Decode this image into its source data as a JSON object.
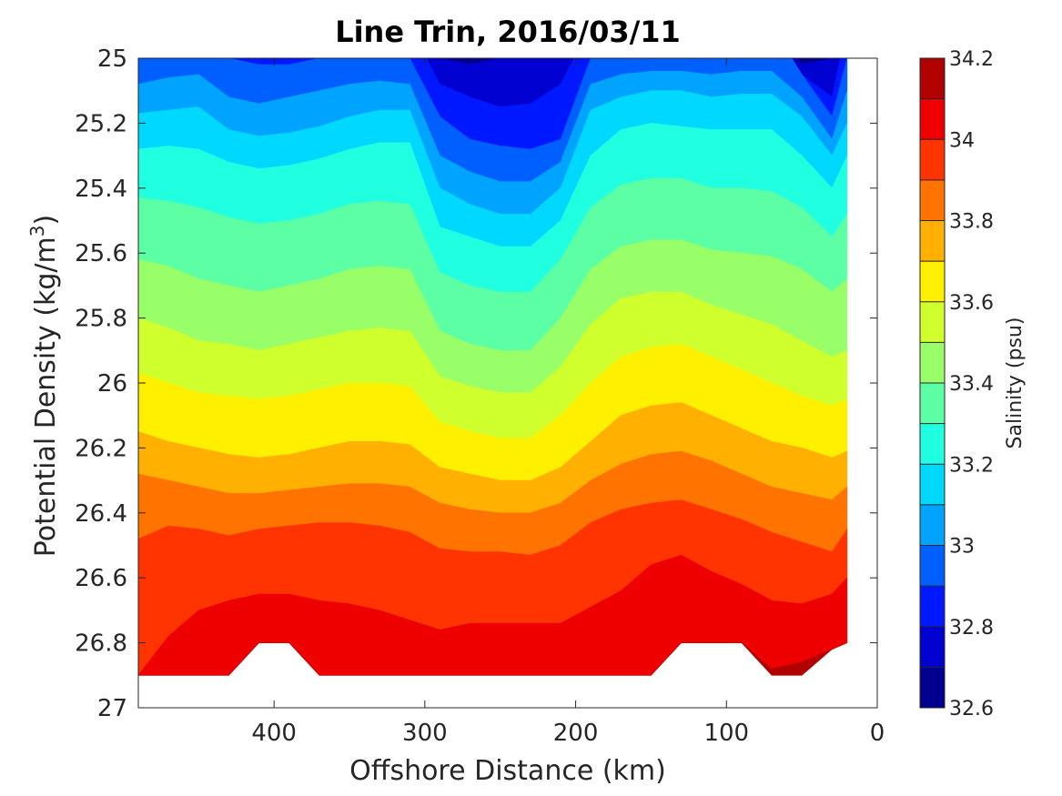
{
  "chart_data": {
    "type": "contour",
    "title": "Line Trin, 2016/03/11",
    "xlabel": "Offshore Distance (km)",
    "ylabel_main": "Potential Density (kg/m",
    "ylabel_sup": "3",
    "ylabel_close": ")",
    "xlim": [
      490,
      0
    ],
    "x_reversed": true,
    "ylim": [
      25,
      27
    ],
    "y_reversed": true,
    "x_ticks": [
      {
        "value": 400,
        "label": "400"
      },
      {
        "value": 300,
        "label": "300"
      },
      {
        "value": 200,
        "label": "200"
      },
      {
        "value": 100,
        "label": "100"
      },
      {
        "value": 0,
        "label": "0"
      }
    ],
    "y_ticks": [
      {
        "value": 25,
        "label": "25"
      },
      {
        "value": 25.2,
        "label": "25.2"
      },
      {
        "value": 25.4,
        "label": "25.4"
      },
      {
        "value": 25.6,
        "label": "25.6"
      },
      {
        "value": 25.8,
        "label": "25.8"
      },
      {
        "value": 26,
        "label": "26"
      },
      {
        "value": 26.2,
        "label": "26.2"
      },
      {
        "value": 26.4,
        "label": "26.4"
      },
      {
        "value": 26.6,
        "label": "26.6"
      },
      {
        "value": 26.8,
        "label": "26.8"
      },
      {
        "value": 27,
        "label": "27"
      }
    ],
    "colorbar": {
      "label": "Salinity (psu)",
      "range": [
        32.6,
        34.2
      ],
      "step": 0.1,
      "colors": [
        "#00008f",
        "#0000d0",
        "#0018ff",
        "#0060ff",
        "#00a4ff",
        "#00d8ff",
        "#20ffe0",
        "#5cffa3",
        "#98ff68",
        "#d0ff2e",
        "#fff000",
        "#ffb000",
        "#ff7400",
        "#ff3400",
        "#ee0000",
        "#b00000"
      ],
      "ticks": [
        {
          "value": 32.6,
          "label": "32.6"
        },
        {
          "value": 32.8,
          "label": "32.8"
        },
        {
          "value": 33,
          "label": "33"
        },
        {
          "value": 33.2,
          "label": "33.2"
        },
        {
          "value": 33.4,
          "label": "33.4"
        },
        {
          "value": 33.6,
          "label": "33.6"
        },
        {
          "value": 33.8,
          "label": "33.8"
        },
        {
          "value": 34,
          "label": "34"
        },
        {
          "value": 34.2,
          "label": "34.2"
        }
      ]
    },
    "distance_stations": [
      490,
      470,
      450,
      430,
      410,
      390,
      370,
      350,
      330,
      310,
      290,
      270,
      250,
      230,
      210,
      190,
      170,
      150,
      130,
      110,
      90,
      70,
      50,
      30,
      20
    ],
    "contour_levels": [
      32.7,
      32.8,
      32.9,
      33.0,
      33.1,
      33.2,
      33.3,
      33.4,
      33.5,
      33.6,
      33.7,
      33.8,
      33.9,
      34.0,
      34.1
    ],
    "isohaline_density": [
      [
        24.9,
        24.9,
        24.9,
        24.9,
        24.9,
        24.9,
        24.9,
        24.9,
        24.9,
        24.9,
        25.0,
        25.02,
        25.0,
        24.98,
        25.0,
        24.9,
        24.9,
        24.9,
        24.9,
        24.9,
        24.9,
        24.9,
        25.02,
        25.0,
        24.9
      ],
      [
        24.9,
        24.9,
        24.9,
        24.9,
        24.9,
        24.9,
        24.9,
        24.9,
        24.9,
        24.9,
        25.08,
        25.12,
        25.15,
        25.14,
        25.08,
        24.9,
        24.9,
        24.9,
        24.9,
        24.9,
        24.9,
        24.9,
        25.05,
        25.12,
        24.9
      ],
      [
        24.9,
        24.9,
        24.9,
        25.0,
        25.02,
        25.02,
        25.0,
        24.99,
        24.99,
        25.0,
        25.18,
        25.25,
        25.27,
        25.28,
        25.25,
        25.0,
        24.9,
        24.9,
        24.9,
        24.9,
        24.9,
        24.9,
        25.05,
        25.18,
        25.0
      ],
      [
        25.08,
        25.06,
        25.05,
        25.12,
        25.14,
        25.12,
        25.1,
        25.08,
        25.07,
        25.08,
        25.3,
        25.35,
        25.38,
        25.38,
        25.32,
        25.08,
        25.05,
        25.04,
        25.04,
        25.05,
        25.04,
        25.04,
        25.12,
        25.25,
        25.1
      ],
      [
        25.17,
        25.16,
        25.15,
        25.22,
        25.24,
        25.23,
        25.21,
        25.18,
        25.16,
        25.16,
        25.4,
        25.45,
        25.48,
        25.48,
        25.4,
        25.16,
        25.12,
        25.1,
        25.1,
        25.12,
        25.11,
        25.11,
        25.18,
        25.3,
        25.2
      ],
      [
        25.28,
        25.27,
        25.28,
        25.32,
        25.34,
        25.33,
        25.31,
        25.28,
        25.26,
        25.26,
        25.52,
        25.55,
        25.58,
        25.58,
        25.5,
        25.3,
        25.22,
        25.2,
        25.21,
        25.22,
        25.22,
        25.22,
        25.3,
        25.4,
        25.3
      ],
      [
        25.43,
        25.44,
        25.46,
        25.49,
        25.51,
        25.5,
        25.48,
        25.45,
        25.44,
        25.45,
        25.66,
        25.7,
        25.72,
        25.72,
        25.62,
        25.46,
        25.39,
        25.37,
        25.37,
        25.4,
        25.4,
        25.41,
        25.46,
        25.55,
        25.48
      ],
      [
        25.62,
        25.64,
        25.68,
        25.7,
        25.72,
        25.7,
        25.68,
        25.65,
        25.64,
        25.65,
        25.84,
        25.88,
        25.9,
        25.9,
        25.8,
        25.65,
        25.58,
        25.56,
        25.56,
        25.59,
        25.6,
        25.61,
        25.65,
        25.72,
        25.68
      ],
      [
        25.8,
        25.83,
        25.87,
        25.88,
        25.9,
        25.88,
        25.86,
        25.84,
        25.83,
        25.84,
        25.98,
        26.01,
        26.03,
        26.03,
        25.95,
        25.82,
        25.74,
        25.72,
        25.72,
        25.76,
        25.79,
        25.82,
        25.87,
        25.92,
        25.9
      ],
      [
        25.97,
        26.0,
        26.03,
        26.04,
        26.05,
        26.04,
        26.02,
        26.0,
        26.0,
        26.01,
        26.12,
        26.15,
        26.17,
        26.17,
        26.1,
        26.0,
        25.92,
        25.89,
        25.88,
        25.92,
        25.96,
        26.0,
        26.04,
        26.07,
        26.05
      ],
      [
        26.15,
        26.18,
        26.2,
        26.22,
        26.23,
        26.22,
        26.2,
        26.18,
        26.18,
        26.19,
        26.26,
        26.28,
        26.3,
        26.3,
        26.26,
        26.18,
        26.1,
        26.07,
        26.06,
        26.1,
        26.14,
        26.18,
        26.2,
        26.23,
        26.21
      ],
      [
        26.28,
        26.3,
        26.32,
        26.34,
        26.34,
        26.33,
        26.32,
        26.31,
        26.31,
        26.32,
        26.37,
        26.39,
        26.4,
        26.4,
        26.37,
        26.3,
        26.25,
        26.22,
        26.21,
        26.24,
        26.28,
        26.32,
        26.34,
        26.36,
        26.32
      ],
      [
        26.48,
        26.44,
        26.45,
        26.47,
        26.45,
        26.44,
        26.43,
        26.43,
        26.44,
        26.46,
        26.51,
        26.52,
        26.52,
        26.53,
        26.5,
        26.43,
        26.39,
        26.37,
        26.36,
        26.39,
        26.42,
        26.46,
        26.49,
        26.52,
        26.45
      ],
      [
        26.9,
        26.78,
        26.7,
        26.67,
        26.65,
        26.65,
        26.67,
        26.68,
        26.7,
        26.73,
        26.76,
        26.74,
        26.74,
        26.74,
        26.74,
        26.69,
        26.64,
        26.56,
        26.53,
        26.58,
        26.62,
        26.67,
        26.68,
        26.65,
        26.6
      ],
      [
        27.1,
        27.1,
        27.1,
        27.1,
        27.1,
        27.1,
        27.1,
        27.1,
        27.1,
        27.1,
        27.1,
        27.1,
        27.1,
        27.1,
        27.1,
        27.1,
        27.1,
        27.1,
        27.1,
        27.1,
        27.1,
        26.88,
        26.86,
        26.84,
        27.1
      ]
    ],
    "bottom_boundary_density": [
      26.9,
      26.9,
      26.9,
      26.9,
      26.8,
      26.8,
      26.9,
      26.9,
      26.9,
      26.9,
      26.9,
      26.9,
      26.9,
      26.9,
      26.9,
      26.9,
      26.9,
      26.9,
      26.8,
      26.8,
      26.8,
      26.9,
      26.9,
      26.82,
      26.8
    ]
  }
}
